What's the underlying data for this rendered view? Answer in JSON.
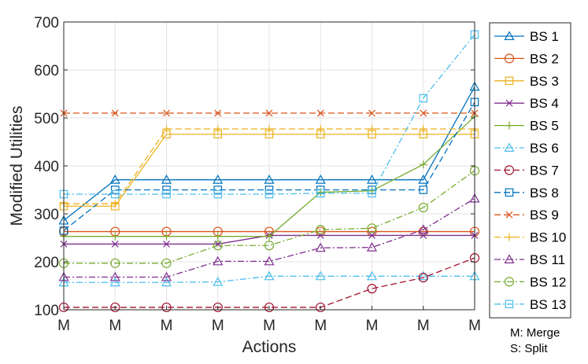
{
  "chart_data": {
    "type": "line",
    "xlabel": "Actions",
    "ylabel": "Modified Utilities",
    "categories": [
      "M",
      "M",
      "M",
      "M",
      "M",
      "M",
      "M",
      "M",
      "M"
    ],
    "ylim": [
      100,
      700
    ],
    "yticks": [
      100,
      200,
      300,
      400,
      500,
      600,
      700
    ],
    "grid": true,
    "legend_position": "right-outside",
    "notes": [
      "M: Merge",
      "S: Split"
    ],
    "series": [
      {
        "name": "BS 1",
        "color": "#0072BD",
        "marker": "triangle",
        "dash": "solid",
        "values": [
          286,
          371,
          371,
          371,
          371,
          371,
          371,
          371,
          565
        ]
      },
      {
        "name": "BS 2",
        "color": "#D95319",
        "marker": "circle",
        "dash": "solid",
        "values": [
          263,
          263,
          263,
          263,
          263,
          263,
          263,
          263,
          263
        ]
      },
      {
        "name": "BS 3",
        "color": "#EDB120",
        "marker": "square",
        "dash": "solid",
        "values": [
          316,
          316,
          466,
          466,
          466,
          466,
          466,
          466,
          466
        ]
      },
      {
        "name": "BS 4",
        "color": "#7E2F8E",
        "marker": "x",
        "dash": "solid",
        "values": [
          237,
          237,
          237,
          237,
          255,
          255,
          255,
          255,
          255
        ]
      },
      {
        "name": "BS 5",
        "color": "#77AC30",
        "marker": "plus",
        "dash": "solid",
        "values": [
          253,
          253,
          253,
          253,
          253,
          345,
          348,
          403,
          503
        ]
      },
      {
        "name": "BS 6",
        "color": "#4DBEEE",
        "marker": "triangle",
        "dash": "dashdot",
        "values": [
          157,
          157,
          157,
          158,
          170,
          170,
          170,
          170,
          170
        ]
      },
      {
        "name": "BS 7",
        "color": "#A2142F",
        "marker": "circle",
        "dash": "dashed",
        "values": [
          105,
          105,
          105,
          105,
          105,
          105,
          144,
          167,
          208
        ]
      },
      {
        "name": "BS 8",
        "color": "#0072BD",
        "marker": "square",
        "dash": "dashed",
        "values": [
          265,
          350,
          350,
          350,
          350,
          350,
          350,
          350,
          533
        ]
      },
      {
        "name": "BS 9",
        "color": "#D95319",
        "marker": "x",
        "dash": "dashed",
        "values": [
          510,
          510,
          510,
          510,
          510,
          510,
          510,
          510,
          510
        ]
      },
      {
        "name": "BS 10",
        "color": "#EDB120",
        "marker": "plus",
        "dash": "dashed",
        "values": [
          321,
          321,
          477,
          477,
          477,
          477,
          477,
          477,
          477
        ]
      },
      {
        "name": "BS 11",
        "color": "#7E2F8E",
        "marker": "triangle",
        "dash": "dashdot",
        "values": [
          168,
          168,
          168,
          201,
          201,
          229,
          230,
          267,
          332
        ]
      },
      {
        "name": "BS 12",
        "color": "#77AC30",
        "marker": "circle",
        "dash": "dashdot",
        "values": [
          197,
          197,
          197,
          234,
          234,
          267,
          270,
          313,
          390
        ]
      },
      {
        "name": "BS 13",
        "color": "#4DBEEE",
        "marker": "square",
        "dash": "dashdot",
        "values": [
          341,
          341,
          341,
          341,
          341,
          343,
          343,
          541,
          674
        ]
      }
    ]
  }
}
